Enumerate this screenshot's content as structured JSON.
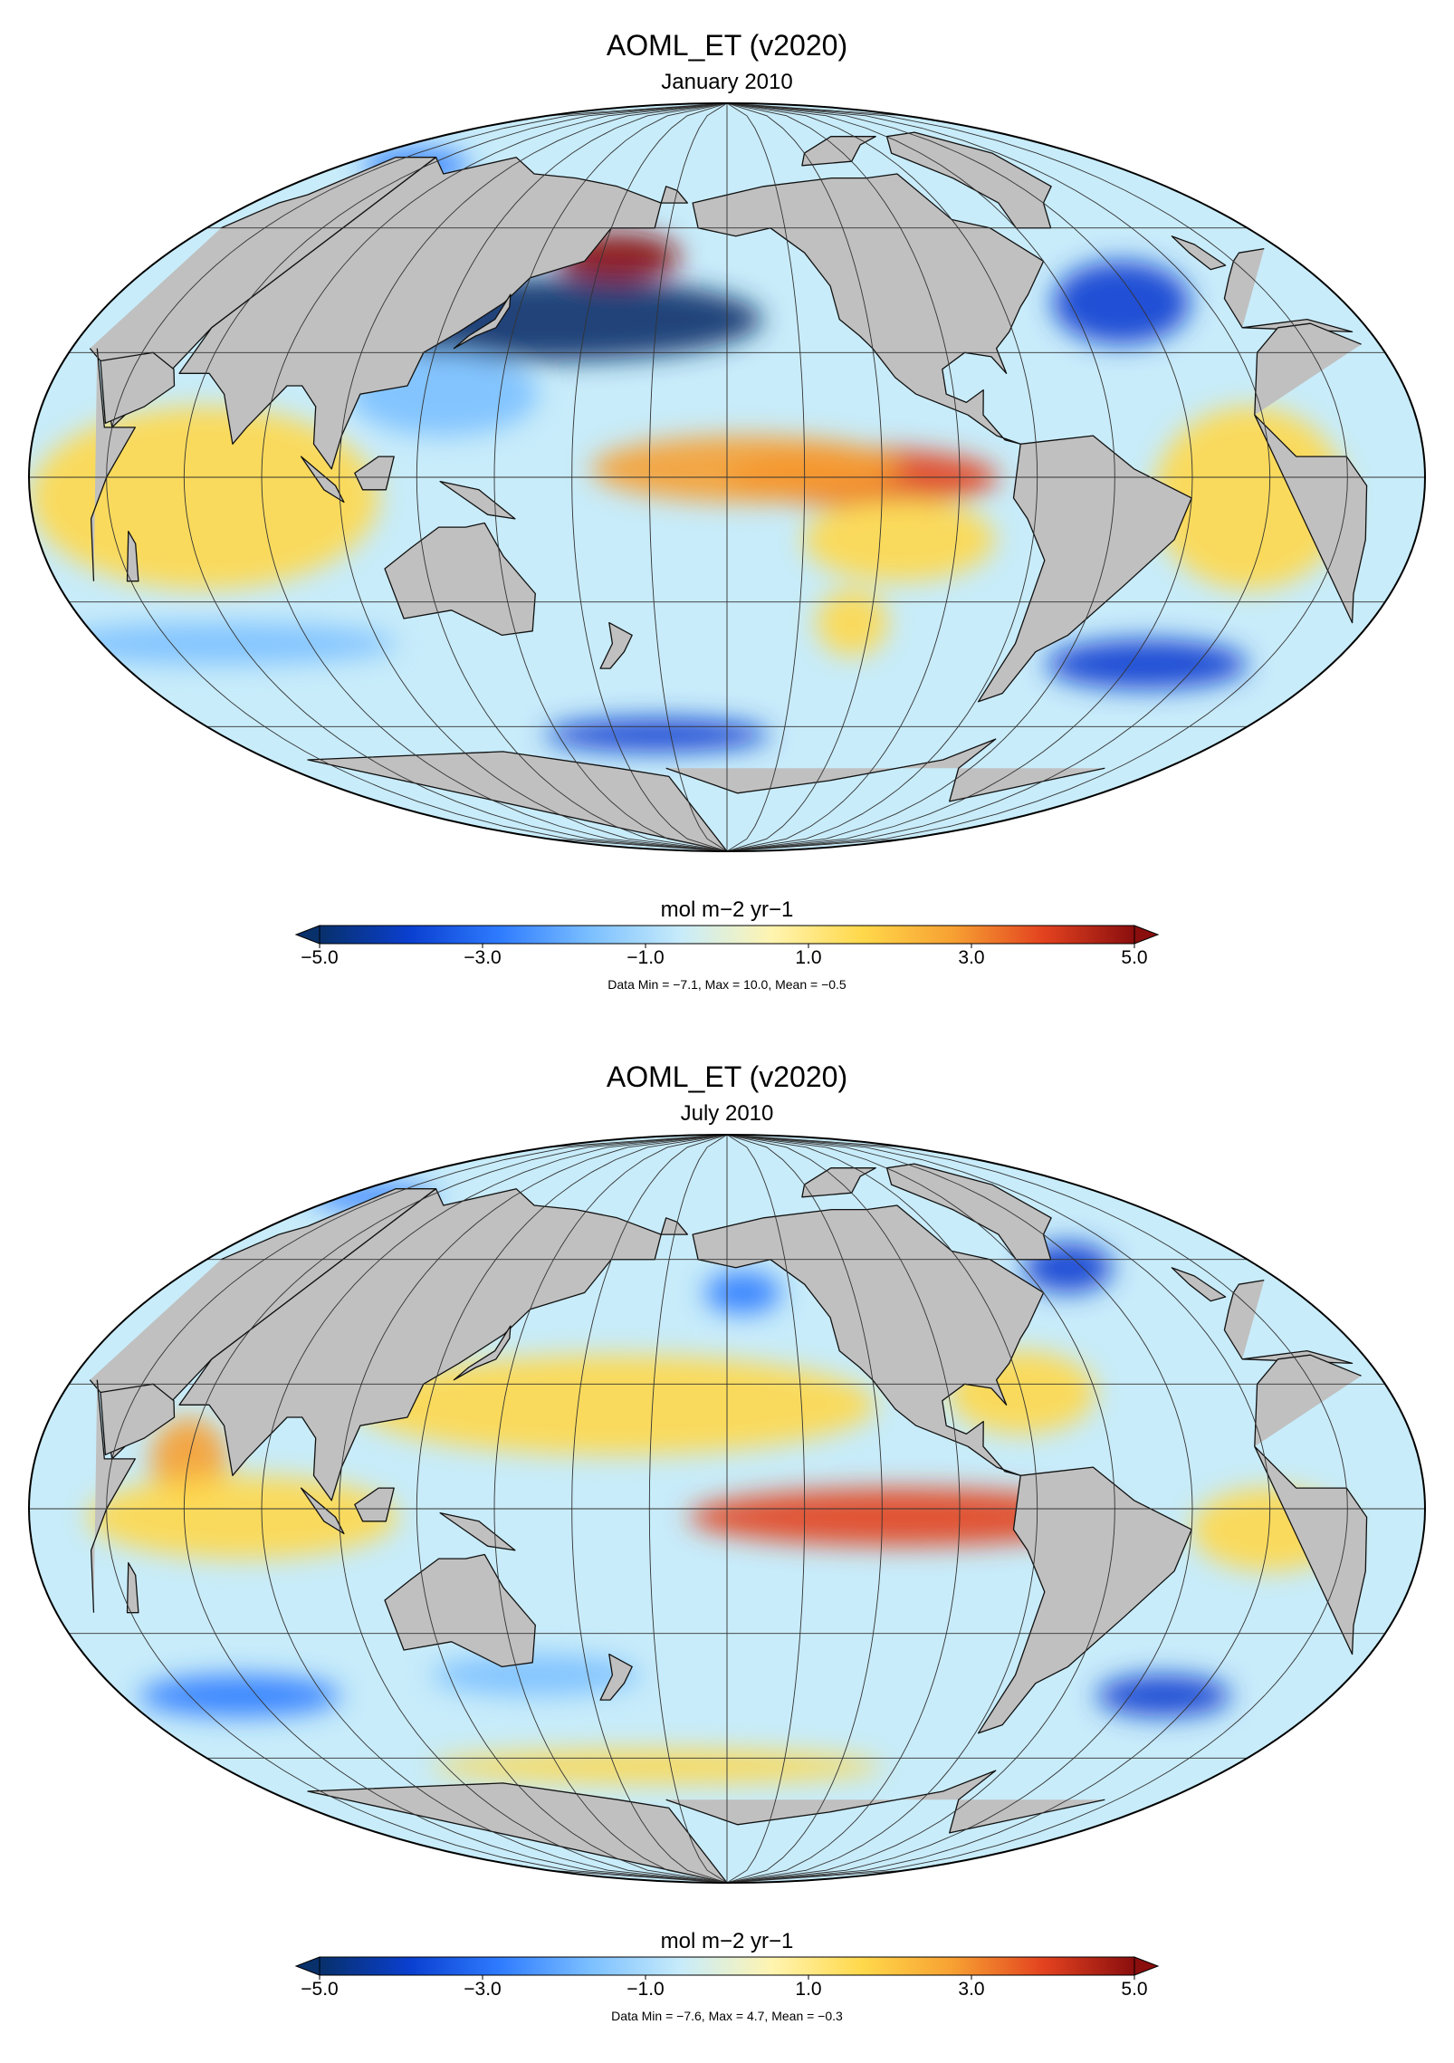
{
  "colors": {
    "land": "#c0c0c0",
    "ocean_base": "#c8ecfa",
    "coast": "#111111",
    "grid": "#333333",
    "colormap": [
      "#08306b",
      "#0a3fd0",
      "#2f7cff",
      "#7cc0ff",
      "#c8ecfa",
      "#fff4b0",
      "#ffd84a",
      "#f7a032",
      "#e3421f",
      "#8a0e0e"
    ]
  },
  "panels": [
    {
      "title": "AOML_ET (v2020)",
      "subtitle": "January 2010",
      "colorbar": {
        "unit": "mol m−2 yr−1",
        "ticks": [
          "−5.0",
          "−3.0",
          "−1.0",
          "1.0",
          "3.0",
          "5.0"
        ],
        "min": -5.0,
        "max": 5.0
      },
      "stats": "Data Min = −7.1, Max = 10.0, Mean = −0.5",
      "anomalies": [
        {
          "lon": 155,
          "lat": 38,
          "value": -6.0,
          "rx": 60,
          "ry": 10
        },
        {
          "lon": 170,
          "lat": 53,
          "value": 5.0,
          "rx": 20,
          "ry": 6
        },
        {
          "lon": -120,
          "lat": 0,
          "value": 4.2,
          "rx": 35,
          "ry": 7
        },
        {
          "lon": -150,
          "lat": 2,
          "value": 2.5,
          "rx": 40,
          "ry": 8
        },
        {
          "lon": -110,
          "lat": -15,
          "value": 2.0,
          "rx": 25,
          "ry": 10
        },
        {
          "lon": 70,
          "lat": -5,
          "value": 1.6,
          "rx": 45,
          "ry": 22
        },
        {
          "lon": -20,
          "lat": -5,
          "value": 1.8,
          "rx": 25,
          "ry": 22
        },
        {
          "lon": -40,
          "lat": 42,
          "value": -4.0,
          "rx": 20,
          "ry": 10
        },
        {
          "lon": -30,
          "lat": -45,
          "value": -3.8,
          "rx": 30,
          "ry": 6
        },
        {
          "lon": 180,
          "lat": -62,
          "value": -4.0,
          "rx": 40,
          "ry": 4
        },
        {
          "lon": -120,
          "lat": -35,
          "value": 2.2,
          "rx": 10,
          "ry": 8
        },
        {
          "lon": 60,
          "lat": -40,
          "value": -1.5,
          "rx": 50,
          "ry": 5
        },
        {
          "lon": 130,
          "lat": 20,
          "value": -1.5,
          "rx": 25,
          "ry": 10
        },
        {
          "lon": 60,
          "lat": 75,
          "value": -3.0,
          "rx": 25,
          "ry": 4
        }
      ]
    },
    {
      "title": "AOML_ET (v2020)",
      "subtitle": "July 2010",
      "colorbar": {
        "unit": "mol m−2 yr−1",
        "ticks": [
          "−5.0",
          "−3.0",
          "−1.0",
          "1.0",
          "3.0",
          "5.0"
        ],
        "min": -5.0,
        "max": 5.0
      },
      "stats": "Data Min = −7.6, Max = 4.7, Mean = −0.3",
      "anomalies": [
        {
          "lon": -110,
          "lat": -2,
          "value": 3.8,
          "rx": 55,
          "ry": 7
        },
        {
          "lon": 175,
          "lat": 25,
          "value": 1.6,
          "rx": 70,
          "ry": 12
        },
        {
          "lon": 65,
          "lat": 12,
          "value": 2.8,
          "rx": 10,
          "ry": 10
        },
        {
          "lon": 80,
          "lat": -2,
          "value": 1.6,
          "rx": 40,
          "ry": 10
        },
        {
          "lon": -15,
          "lat": -5,
          "value": 2.0,
          "rx": 20,
          "ry": 10
        },
        {
          "lon": -75,
          "lat": 28,
          "value": 1.5,
          "rx": 20,
          "ry": 10
        },
        {
          "lon": -40,
          "lat": 58,
          "value": -3.8,
          "rx": 15,
          "ry": 6
        },
        {
          "lon": -25,
          "lat": -45,
          "value": -3.5,
          "rx": 20,
          "ry": 5
        },
        {
          "lon": 60,
          "lat": -45,
          "value": -3.0,
          "rx": 30,
          "ry": 5
        },
        {
          "lon": 150,
          "lat": -40,
          "value": -2.0,
          "rx": 30,
          "ry": 5
        },
        {
          "lon": -150,
          "lat": 52,
          "value": -2.5,
          "rx": 12,
          "ry": 5
        },
        {
          "lon": 180,
          "lat": -62,
          "value": 1.2,
          "rx": 80,
          "ry": 4
        },
        {
          "lon": 40,
          "lat": 75,
          "value": -2.5,
          "rx": 30,
          "ry": 3
        }
      ]
    }
  ]
}
